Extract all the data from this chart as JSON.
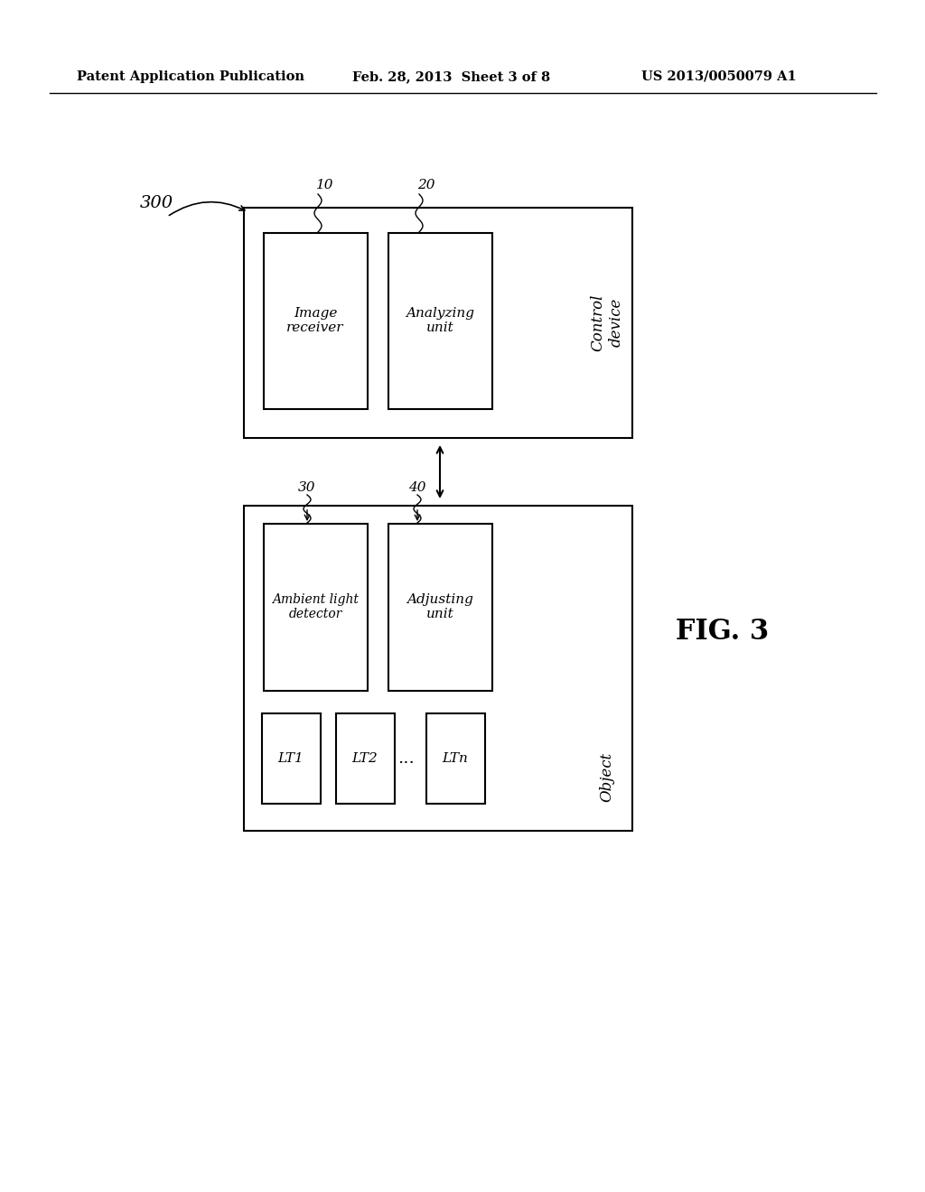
{
  "bg_color": "#ffffff",
  "header_left": "Patent Application Publication",
  "header_mid": "Feb. 28, 2013  Sheet 3 of 8",
  "header_right": "US 2013/0050079 A1",
  "fig_label": "FIG. 3"
}
